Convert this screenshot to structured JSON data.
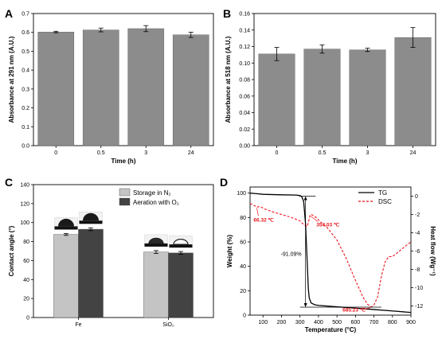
{
  "chart_data": [
    {
      "id": "A",
      "type": "bar",
      "panel_label": "A",
      "xlabel": "Time (h)",
      "ylabel": "Absorbance at 291 nm (A.U.)",
      "categories": [
        "0",
        "0.5",
        "3",
        "24"
      ],
      "values": [
        0.602,
        0.613,
        0.62,
        0.587
      ],
      "errors": [
        0.004,
        0.01,
        0.016,
        0.014
      ],
      "ylim": [
        0.0,
        0.7
      ],
      "yticks": [
        "0.0",
        "0.1",
        "0.2",
        "0.3",
        "0.4",
        "0.5",
        "0.6",
        "0.7"
      ],
      "bar_color": "#8c8c8c"
    },
    {
      "id": "B",
      "type": "bar",
      "panel_label": "B",
      "xlabel": "Time (h)",
      "ylabel": "Absorbance at 518 nm (A.U.)",
      "categories": [
        "0",
        "0.5",
        "3",
        "24"
      ],
      "values": [
        0.111,
        0.117,
        0.116,
        0.131
      ],
      "errors": [
        0.008,
        0.005,
        0.002,
        0.012
      ],
      "ylim": [
        0.0,
        0.16
      ],
      "yticks": [
        "0.00",
        "0.02",
        "0.04",
        "0.06",
        "0.08",
        "0.10",
        "0.12",
        "0.14",
        "0.16"
      ],
      "bar_color": "#8c8c8c"
    },
    {
      "id": "C",
      "type": "bar",
      "panel_label": "C",
      "ylabel": "Contact angle (°)",
      "categories": [
        "Fe",
        "SiO₂"
      ],
      "series": [
        {
          "name": "Storage in N₂",
          "values": [
            87.5,
            69.0
          ],
          "errors": [
            1.0,
            1.5
          ],
          "color": "#c4c4c4"
        },
        {
          "name": "Aeration with O₂",
          "values": [
            93.0,
            68.0
          ],
          "errors": [
            1.5,
            1.5
          ],
          "color": "#434343"
        }
      ],
      "ylim": [
        0,
        140
      ],
      "yticks": [
        "0",
        "20",
        "40",
        "60",
        "80",
        "100",
        "120",
        "140"
      ],
      "legend_position": "top-right"
    },
    {
      "id": "D",
      "type": "line",
      "panel_label": "D",
      "xlabel": "Temperature (°C)",
      "ylabel": "Weight (%)",
      "y2label": "Heat flow (Wg⁻¹)",
      "xlim": [
        30,
        900
      ],
      "ylim": [
        0,
        105
      ],
      "y2lim": [
        -13,
        1
      ],
      "xticks": [
        "100",
        "200",
        "300",
        "400",
        "500",
        "600",
        "700",
        "800",
        "900"
      ],
      "yticks": [
        "0",
        "20",
        "40",
        "60",
        "80",
        "100"
      ],
      "y2ticks": [
        "0",
        "-2",
        "-4",
        "-6",
        "-8",
        "-10",
        "-12"
      ],
      "legend_position": "top-right",
      "series": [
        {
          "name": "TG",
          "axis": "left",
          "color": "#000000",
          "style": "solid",
          "x": [
            30,
            60,
            100,
            200,
            280,
            300,
            310,
            320,
            330,
            340,
            345,
            350,
            360,
            380,
            400,
            500,
            600,
            700,
            800,
            900
          ],
          "y": [
            100,
            99.6,
            99.0,
            98.6,
            98.4,
            98.0,
            97.0,
            93.0,
            75.0,
            40.0,
            22.0,
            14.0,
            10.0,
            8.5,
            8.0,
            6.8,
            5.7,
            4.6,
            3.4,
            2.2
          ]
        },
        {
          "name": "DSC",
          "axis": "right",
          "color": "#e8141c",
          "style": "dashed",
          "x": [
            30,
            50,
            60,
            66,
            75,
            90,
            110,
            150,
            200,
            250,
            300,
            320,
            340,
            350,
            354,
            360,
            380,
            400,
            450,
            500,
            550,
            600,
            640,
            665,
            685,
            700,
            720,
            740,
            760,
            780,
            800,
            820,
            850,
            880,
            900
          ],
          "y": [
            -0.8,
            -1.0,
            -1.1,
            -1.2,
            -1.15,
            -1.2,
            -1.4,
            -1.7,
            -2.0,
            -2.3,
            -2.7,
            -3.1,
            -3.3,
            -2.5,
            -2.1,
            -2.0,
            -2.2,
            -2.6,
            -3.5,
            -4.8,
            -6.8,
            -9.2,
            -11.0,
            -11.8,
            -12.1,
            -11.9,
            -11.0,
            -8.8,
            -7.2,
            -6.6,
            -6.6,
            -6.3,
            -5.8,
            -5.3,
            -5.0
          ]
        }
      ],
      "annotations": [
        {
          "text": "66.32 ℃",
          "x": 66.32,
          "y2": -1.2,
          "color": "#e8141c"
        },
        {
          "text": "354.03 ℃",
          "x": 354.03,
          "y2": -2.1,
          "color": "#e8141c"
        },
        {
          "text": "685.23 ℃",
          "x": 685.23,
          "y2": -12.1,
          "color": "#e8141c"
        },
        {
          "text": "-91.09%",
          "x": 330,
          "y": 50,
          "color": "#000000"
        }
      ],
      "weight_loss_range": [
        97.5,
        6.5
      ]
    }
  ]
}
